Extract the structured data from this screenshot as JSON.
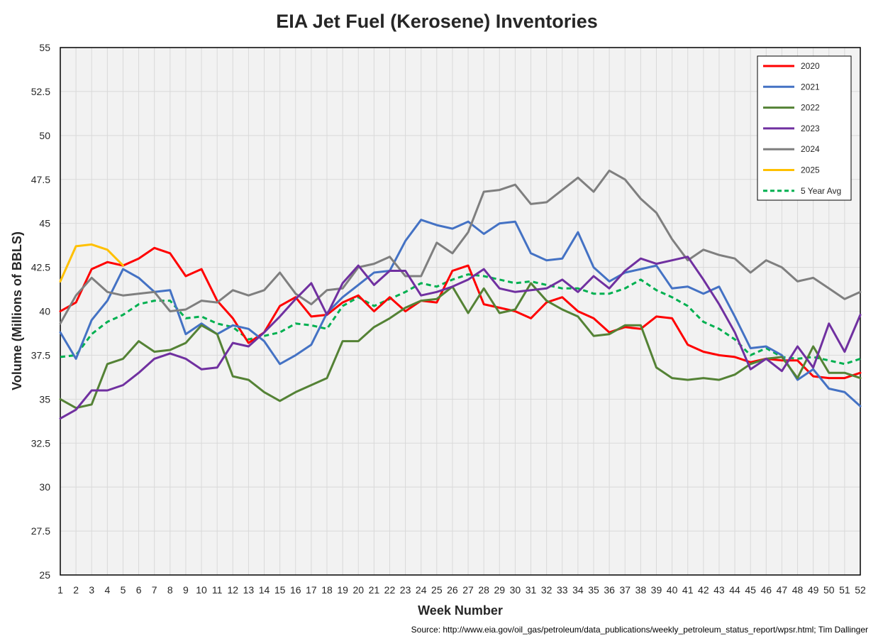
{
  "chart_data": {
    "type": "line",
    "title": "EIA Jet Fuel (Kerosene) Inventories",
    "xlabel": "Week Number",
    "ylabel": "Volume (Millions of BBLS)",
    "source": "Source: http://www.eia.gov/oil_gas/petroleum/data_publications/weekly_petroleum_status_report/wpsr.html; Tim Dallinger",
    "xlim": [
      1,
      52
    ],
    "ylim": [
      25,
      55
    ],
    "yticks": [
      25,
      27.5,
      30,
      32.5,
      35,
      37.5,
      40,
      42.5,
      45,
      47.5,
      50,
      52.5,
      55
    ],
    "yticks_labels": [
      "25",
      "27.5",
      "30",
      "32.5",
      "35",
      "37.5",
      "40",
      "42.5",
      "45",
      "47.5",
      "50",
      "52.5",
      "55"
    ],
    "grid": true,
    "legend_position": "top-right",
    "series": [
      {
        "name": "2020",
        "color": "#ff0000",
        "dash": false,
        "values": [
          40.0,
          40.5,
          42.4,
          42.8,
          42.6,
          43.0,
          43.6,
          43.3,
          42.0,
          42.4,
          40.6,
          39.6,
          38.2,
          38.8,
          40.3,
          40.8,
          39.7,
          39.8,
          40.5,
          40.9,
          40.0,
          40.8,
          40.0,
          40.6,
          40.5,
          42.3,
          42.6,
          40.4,
          40.2,
          40.0,
          39.6,
          40.5,
          40.8,
          40.0,
          39.6,
          38.8,
          39.1,
          39.0,
          39.7,
          39.6,
          38.1,
          37.7,
          37.5,
          37.4,
          37.1,
          37.3,
          37.2,
          37.2,
          36.3,
          36.2,
          36.2,
          36.5
        ]
      },
      {
        "name": "2021",
        "color": "#4472c4",
        "dash": false,
        "values": [
          38.8,
          37.3,
          39.5,
          40.6,
          42.4,
          41.9,
          41.1,
          41.2,
          38.7,
          39.3,
          38.7,
          39.2,
          39.0,
          38.3,
          37.0,
          37.5,
          38.1,
          39.9,
          40.8,
          41.5,
          42.2,
          42.3,
          44.0,
          45.2,
          44.9,
          44.7,
          45.1,
          44.4,
          45.0,
          45.1,
          43.3,
          42.9,
          43.0,
          44.5,
          42.5,
          41.7,
          42.2,
          42.4,
          42.6,
          41.3,
          41.4,
          41.0,
          41.4,
          39.7,
          37.9,
          38.0,
          37.5,
          36.1,
          36.7,
          35.6,
          35.4,
          34.6
        ]
      },
      {
        "name": "2022",
        "color": "#548235",
        "dash": false,
        "values": [
          35.0,
          34.5,
          34.7,
          37.0,
          37.3,
          38.3,
          37.7,
          37.8,
          38.2,
          39.2,
          38.7,
          36.3,
          36.1,
          35.4,
          34.9,
          35.4,
          35.8,
          36.2,
          38.3,
          38.3,
          39.1,
          39.6,
          40.2,
          40.6,
          40.7,
          41.4,
          39.9,
          41.3,
          39.9,
          40.1,
          41.6,
          40.6,
          40.1,
          39.7,
          38.6,
          38.7,
          39.2,
          39.2,
          36.8,
          36.2,
          36.1,
          36.2,
          36.1,
          36.4,
          37.0,
          37.3,
          37.4,
          36.2,
          38.0,
          36.5,
          36.5,
          36.2
        ]
      },
      {
        "name": "2023",
        "color": "#7030a0",
        "dash": false,
        "values": [
          33.9,
          34.4,
          35.5,
          35.5,
          35.8,
          36.5,
          37.3,
          37.6,
          37.3,
          36.7,
          36.8,
          38.2,
          38.0,
          38.8,
          39.7,
          40.7,
          41.6,
          39.8,
          41.6,
          42.6,
          41.5,
          42.3,
          42.3,
          40.9,
          41.1,
          41.4,
          41.8,
          42.4,
          41.3,
          41.1,
          41.2,
          41.3,
          41.8,
          41.1,
          42.0,
          41.3,
          42.3,
          43.0,
          42.7,
          42.9,
          43.1,
          41.8,
          40.4,
          38.8,
          36.7,
          37.3,
          36.6,
          38.0,
          36.8,
          39.3,
          37.7,
          39.8
        ]
      },
      {
        "name": "2024",
        "color": "#7f7f7f",
        "dash": false,
        "values": [
          39.3,
          40.9,
          41.9,
          41.1,
          40.9,
          41.0,
          41.1,
          40.0,
          40.1,
          40.6,
          40.5,
          41.2,
          40.9,
          41.2,
          42.2,
          41.0,
          40.4,
          41.2,
          41.3,
          42.5,
          42.7,
          43.1,
          42.0,
          42.0,
          43.9,
          43.3,
          44.5,
          46.8,
          46.9,
          47.2,
          46.1,
          46.2,
          46.9,
          47.6,
          46.8,
          48.0,
          47.5,
          46.4,
          45.6,
          44.1,
          42.9,
          43.5,
          43.2,
          43.0,
          42.2,
          42.9,
          42.5,
          41.7,
          41.9,
          41.3,
          40.7,
          41.1
        ]
      },
      {
        "name": "2025",
        "color": "#ffc000",
        "dash": false,
        "values": [
          41.7,
          43.7,
          43.8,
          43.5,
          42.6
        ]
      },
      {
        "name": "5 Year Avg",
        "color": "#00b050",
        "dash": true,
        "values": [
          37.4,
          37.5,
          38.7,
          39.4,
          39.8,
          40.4,
          40.6,
          40.6,
          39.6,
          39.7,
          39.3,
          39.1,
          38.4,
          38.6,
          38.8,
          39.3,
          39.2,
          39.0,
          40.3,
          40.8,
          40.3,
          40.7,
          41.1,
          41.6,
          41.4,
          41.8,
          42.1,
          42.0,
          41.8,
          41.6,
          41.7,
          41.5,
          41.3,
          41.3,
          41.0,
          41.0,
          41.3,
          41.8,
          41.2,
          40.8,
          40.3,
          39.4,
          39.0,
          38.4,
          37.5,
          37.9,
          37.4,
          37.3,
          37.4,
          37.2,
          37.0,
          37.3
        ]
      }
    ]
  }
}
